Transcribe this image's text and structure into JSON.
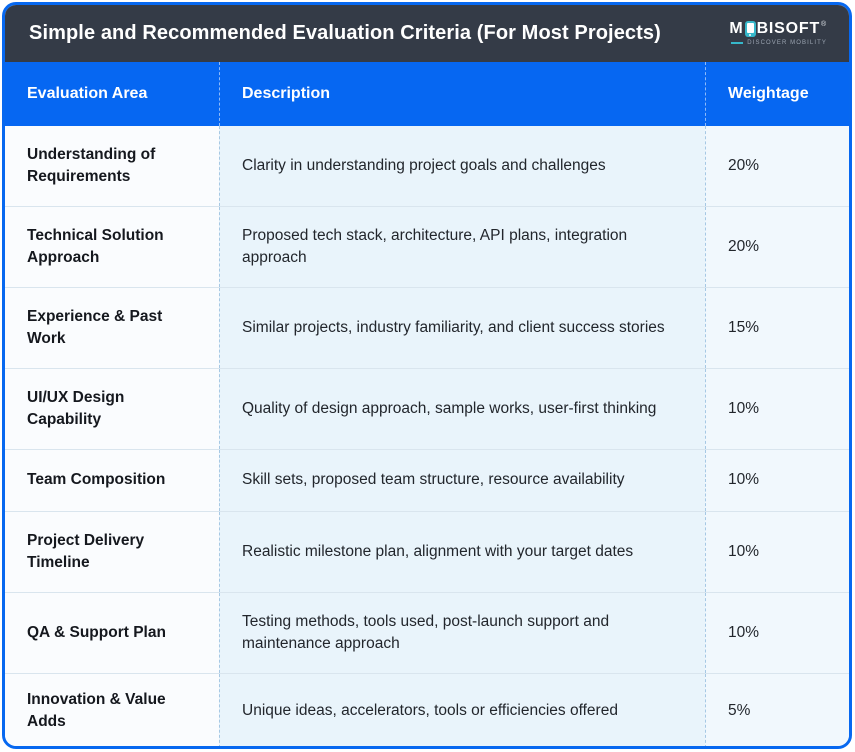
{
  "header": {
    "title": "Simple and Recommended Evaluation Criteria (For Most Projects)",
    "logo": {
      "word_prefix": "M",
      "word_suffix": "BISOFT",
      "mark": "®",
      "tagline": "DISCOVER MOBILITY"
    }
  },
  "colors": {
    "accent_blue": "#0768F0",
    "header_dark": "#343B47",
    "logo_teal": "#36B7CA",
    "cell_light_blue": "#E9F4FB"
  },
  "table": {
    "columns": [
      "Evaluation Area",
      "Description",
      "Weightage"
    ],
    "rows": [
      {
        "area": "Understanding of Requirements",
        "description": "Clarity in understanding project goals and challenges",
        "weightage": "20%"
      },
      {
        "area": "Technical Solution Approach",
        "description": "Proposed tech stack, architecture, API plans, integration approach",
        "weightage": "20%"
      },
      {
        "area": "Experience & Past Work",
        "description": "Similar projects, industry familiarity, and client success stories",
        "weightage": "15%"
      },
      {
        "area": "UI/UX Design Capability",
        "description": "Quality of design approach, sample works, user-first thinking",
        "weightage": "10%"
      },
      {
        "area": "Team Composition",
        "description": "Skill sets, proposed team structure, resource availability",
        "weightage": "10%"
      },
      {
        "area": "Project Delivery Timeline",
        "description": "Realistic milestone plan, alignment with your target dates",
        "weightage": "10%"
      },
      {
        "area": "QA & Support Plan",
        "description": "Testing methods, tools used, post-launch support and maintenance approach",
        "weightage": "10%"
      },
      {
        "area": "Innovation & Value Adds",
        "description": "Unique ideas, accelerators, tools or efficiencies offered",
        "weightage": "5%"
      }
    ]
  },
  "chart_data": {
    "type": "table",
    "title": "Simple and Recommended Evaluation Criteria (For Most Projects)",
    "columns": [
      "Evaluation Area",
      "Description",
      "Weightage"
    ],
    "categories": [
      "Understanding of Requirements",
      "Technical Solution Approach",
      "Experience & Past Work",
      "UI/UX Design Capability",
      "Team Composition",
      "Project Delivery Timeline",
      "QA & Support Plan",
      "Innovation & Value Adds"
    ],
    "values": [
      20,
      20,
      15,
      10,
      10,
      10,
      10,
      5
    ],
    "value_unit": "%",
    "descriptions": [
      "Clarity in understanding project goals and challenges",
      "Proposed tech stack, architecture, API plans, integration approach",
      "Similar projects, industry familiarity, and client success stories",
      "Quality of design approach, sample works, user-first thinking",
      "Skill sets, proposed team structure, resource availability",
      "Realistic milestone plan, alignment with your target dates",
      "Testing methods, tools used, post-launch support and maintenance approach",
      "Unique ideas, accelerators, tools or efficiencies offered"
    ]
  }
}
